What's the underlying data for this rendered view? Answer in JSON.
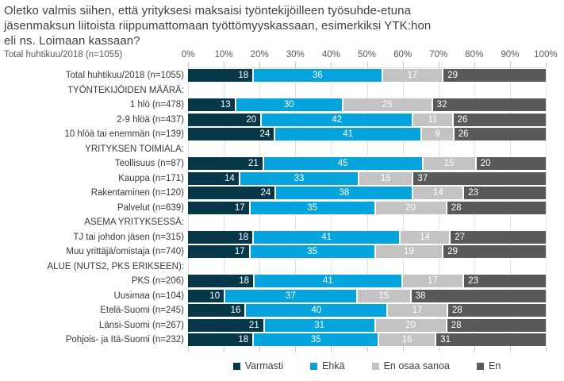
{
  "chart_data": {
    "type": "bar",
    "orientation": "horizontal",
    "stacked": true,
    "unit": "%",
    "title_lines": [
      "Oletko valmis siihen, että yrityksesi maksaisi työntekijöilleen työsuhde-etuna",
      "jäsenmaksun liitoista riippumattomaan työttömyyskassaan, esimerkiksi YTK:hon",
      "eli ns. Loimaan kassaan?"
    ],
    "subtitle": "Total huhtikuu/2018 (n=1055)",
    "axis_tick_labels": [
      "0%",
      "10%",
      "20%",
      "30%",
      "40%",
      "50%",
      "60%",
      "70%",
      "80%",
      "90%",
      "100%"
    ],
    "xlim": [
      0,
      100
    ],
    "grid": true,
    "legend_position": "bottom",
    "series": [
      {
        "name": "Varmasti",
        "slug": "varmasti",
        "color": "#07384a"
      },
      {
        "name": "Ehkä",
        "slug": "ehka",
        "color": "#05a4dc"
      },
      {
        "name": "En osaa sanoa",
        "slug": "en-osaa-sanoa",
        "color": "#c3c3c3"
      },
      {
        "name": "En",
        "slug": "en",
        "color": "#595959"
      }
    ],
    "rows": [
      {
        "label": "Total huhtikuu/2018 (n=1055)",
        "values": [
          18,
          36,
          17,
          29
        ]
      },
      {
        "label": "TYÖNTEKIJÖIDEN MÄÄRÄ:",
        "header": true
      },
      {
        "label": "1 hlö (n=478)",
        "values": [
          13,
          30,
          25,
          32
        ]
      },
      {
        "label": "2-9 hlöä (n=437)",
        "values": [
          20,
          42,
          11,
          26
        ]
      },
      {
        "label": "10 hlöä tai enemmän (n=139)",
        "values": [
          24,
          41,
          9,
          26
        ]
      },
      {
        "label": "YRITYKSEN TOIMIALA:",
        "header": true
      },
      {
        "label": "Teollisuus (n=87)",
        "values": [
          21,
          45,
          15,
          20
        ]
      },
      {
        "label": "Kauppa (n=171)",
        "values": [
          14,
          33,
          15,
          37
        ]
      },
      {
        "label": "Rakentaminen (n=120)",
        "values": [
          24,
          38,
          14,
          23
        ]
      },
      {
        "label": "Palvelut (n=639)",
        "values": [
          17,
          35,
          20,
          28
        ]
      },
      {
        "label": "ASEMA YRITYKSESSÄ:",
        "header": true
      },
      {
        "label": "TJ tai johdon jäsen (n=315)",
        "values": [
          18,
          41,
          14,
          27
        ]
      },
      {
        "label": "Muu yrittäjä/omistaja (n=740)",
        "values": [
          17,
          35,
          19,
          29
        ]
      },
      {
        "label": "ALUE (NUTS2, PKS ERIKSEEN):",
        "header": true
      },
      {
        "label": "PKS (n=206)",
        "values": [
          18,
          41,
          17,
          23
        ]
      },
      {
        "label": "Uusimaa (n=104)",
        "values": [
          10,
          37,
          15,
          38
        ]
      },
      {
        "label": "Etelä-Suomi (n=245)",
        "values": [
          16,
          40,
          17,
          28
        ]
      },
      {
        "label": "Länsi-Suomi (n=267)",
        "values": [
          21,
          31,
          20,
          28
        ]
      },
      {
        "label": "Pohjois- ja Itä-Suomi (n=232)",
        "values": [
          18,
          35,
          16,
          31
        ]
      }
    ]
  }
}
